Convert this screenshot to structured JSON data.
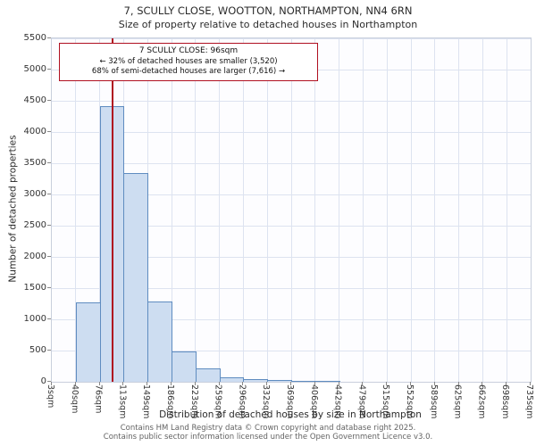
{
  "title": {
    "line1": "7, SCULLY CLOSE, WOOTTON, NORTHAMPTON, NN4 6RN",
    "line2": "Size of property relative to detached houses in Northampton"
  },
  "chart_data": {
    "type": "bar",
    "title": "7, SCULLY CLOSE, WOOTTON, NORTHAMPTON, NN4 6RN — Size of property relative to detached houses in Northampton",
    "xlabel": "Distribution of detached houses by size in Northampton",
    "ylabel": "Number of detached properties",
    "categories": [
      "3sqm",
      "40sqm",
      "76sqm",
      "113sqm",
      "149sqm",
      "186sqm",
      "223sqm",
      "259sqm",
      "296sqm",
      "332sqm",
      "369sqm",
      "406sqm",
      "442sqm",
      "479sqm",
      "515sqm",
      "552sqm",
      "589sqm",
      "625sqm",
      "662sqm",
      "698sqm",
      "735sqm"
    ],
    "bin_min": 3,
    "bin_max": 735,
    "values": [
      0,
      1270,
      4420,
      3340,
      1290,
      480,
      220,
      75,
      40,
      25,
      15,
      5,
      0,
      0,
      0,
      0,
      0,
      0,
      0,
      0
    ],
    "ylim": [
      0,
      5500
    ],
    "yticks": [
      0,
      500,
      1000,
      1500,
      2000,
      2500,
      3000,
      3500,
      4000,
      4500,
      5000,
      5500
    ],
    "grid": true,
    "legend": "none",
    "bar_fill": "#cdddf1",
    "bar_border": "#5f8cc0",
    "marker": {
      "value": 96,
      "color": "#b01020"
    },
    "annotation": {
      "line1": "7 SCULLY CLOSE: 96sqm",
      "line2": "← 32% of detached houses are smaller (3,520)",
      "line3": "68% of semi-detached houses are larger (7,616) →"
    }
  },
  "footer": {
    "line1": "Contains HM Land Registry data © Crown copyright and database right 2025.",
    "line2": "Contains public sector information licensed under the Open Government Licence v3.0."
  }
}
